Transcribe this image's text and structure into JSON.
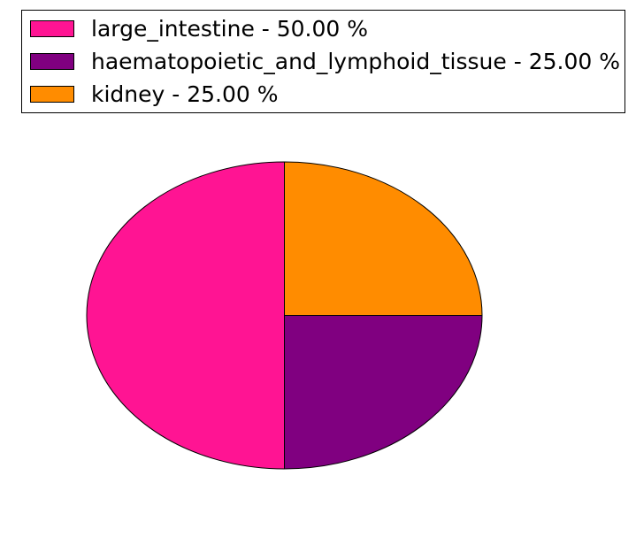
{
  "figure": {
    "background": "#ffffff"
  },
  "chart_data": {
    "type": "pie",
    "slices": [
      {
        "name": "large_intestine",
        "value": 50.0,
        "color": "#FF1493",
        "legend_label": "large_intestine - 50.00 %"
      },
      {
        "name": "haematopoietic_and_lymphoid_tissue",
        "value": 25.0,
        "color": "#800080",
        "legend_label": "haematopoietic_and_lymphoid_tissue - 25.00 %"
      },
      {
        "name": "kidney",
        "value": 25.0,
        "color": "#FF8C00",
        "legend_label": "kidney - 25.00 %"
      }
    ],
    "unit": "%",
    "start_angle_deg": 90,
    "direction": "counterclockwise",
    "edge_color": "#000000",
    "legend_position": "upper-left",
    "legend_border_color": "#000000"
  }
}
